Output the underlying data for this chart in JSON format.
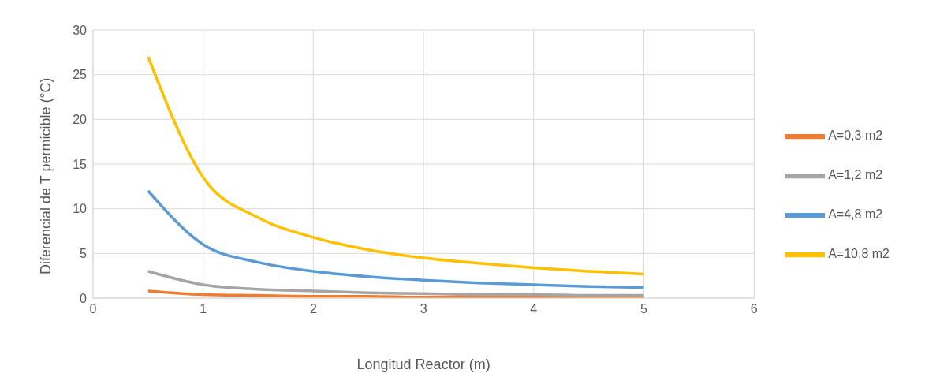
{
  "chart_data": {
    "type": "line",
    "xlabel": "Longitud Reactor (m)",
    "ylabel": "Diferencial de T permicible (°C)",
    "x": [
      0.5,
      1,
      1.5,
      2,
      2.5,
      3,
      3.5,
      4,
      4.5,
      5
    ],
    "series": [
      {
        "name": "A=0,3 m2",
        "color": "#ed7d31",
        "values": [
          0.8,
          0.4,
          0.3,
          0.2,
          0.2,
          0.1,
          0.1,
          0.1,
          0.1,
          0.1
        ]
      },
      {
        "name": "A=1,2 m2",
        "color": "#a5a5a5",
        "values": [
          3,
          1.5,
          1,
          0.8,
          0.6,
          0.5,
          0.4,
          0.4,
          0.3,
          0.3
        ]
      },
      {
        "name": "A=4,8 m2",
        "color": "#5b9bd5",
        "values": [
          12,
          6,
          4,
          3,
          2.4,
          2,
          1.7,
          1.5,
          1.3,
          1.2
        ]
      },
      {
        "name": "A=10,8 m2",
        "color": "#ffc000",
        "values": [
          27,
          13.5,
          9,
          6.8,
          5.4,
          4.5,
          3.9,
          3.4,
          3,
          2.7
        ]
      }
    ],
    "xlim": [
      0,
      6
    ],
    "xticks": [
      0,
      1,
      2,
      3,
      4,
      5,
      6
    ],
    "ylim": [
      0,
      30
    ],
    "yticks": [
      0,
      5,
      10,
      15,
      20,
      25,
      30
    ],
    "grid": true,
    "legend": "right",
    "marker": "none",
    "line_style": "solid"
  }
}
